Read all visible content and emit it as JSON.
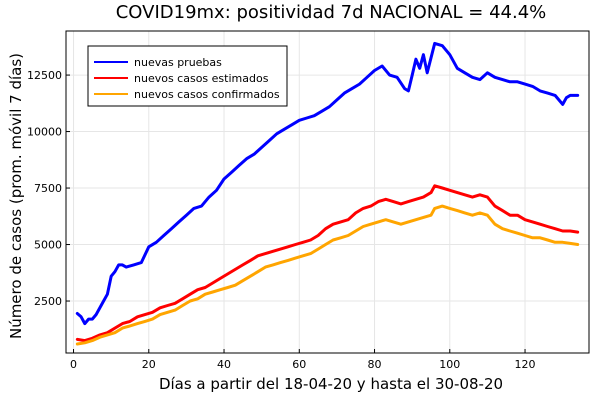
{
  "chart_data": {
    "type": "line",
    "title": "COVID19mx: positividad 7d NACIONAL = 44.4%",
    "xlabel": "Días a partir del 18-04-20 y hasta el 30-08-20",
    "ylabel": "Número de casos (prom. móvil 7 días)",
    "xlim": [
      -2,
      137
    ],
    "ylim": [
      200,
      14450
    ],
    "xticks": [
      0,
      20,
      40,
      60,
      80,
      100,
      120
    ],
    "yticks": [
      2500,
      5000,
      7500,
      10000,
      12500
    ],
    "ytick_labels": [
      "2500",
      "5000",
      "7500",
      "10000",
      "12500"
    ],
    "grid": true,
    "legend_position": "top-left",
    "series": [
      {
        "name": "nuevas pruebas",
        "color": "#0000ff",
        "x": [
          1,
          2,
          3,
          4,
          5,
          6,
          8,
          9,
          10,
          11,
          12,
          13,
          14,
          16,
          18,
          20,
          22,
          24,
          26,
          28,
          30,
          32,
          34,
          36,
          38,
          40,
          42,
          44,
          46,
          48,
          50,
          52,
          54,
          56,
          58,
          60,
          62,
          64,
          66,
          68,
          70,
          72,
          74,
          76,
          78,
          80,
          82,
          84,
          86,
          88,
          89,
          90,
          91,
          92,
          93,
          94,
          96,
          98,
          100,
          102,
          104,
          106,
          108,
          110,
          112,
          114,
          116,
          118,
          120,
          122,
          124,
          126,
          128,
          130,
          131,
          132,
          134
        ],
        "y": [
          1950,
          1800,
          1500,
          1700,
          1700,
          1900,
          2500,
          2800,
          3600,
          3800,
          4100,
          4100,
          4000,
          4100,
          4200,
          4900,
          5100,
          5400,
          5700,
          6000,
          6300,
          6600,
          6700,
          7100,
          7400,
          7900,
          8200,
          8500,
          8800,
          9000,
          9300,
          9600,
          9900,
          10100,
          10300,
          10500,
          10600,
          10700,
          10900,
          11100,
          11400,
          11700,
          11900,
          12100,
          12400,
          12700,
          12900,
          12500,
          12400,
          11900,
          11800,
          12500,
          13200,
          12800,
          13400,
          12600,
          13900,
          13800,
          13400,
          12800,
          12600,
          12400,
          12300,
          12600,
          12400,
          12300,
          12200,
          12200,
          12100,
          12000,
          11800,
          11700,
          11600,
          11200,
          11500,
          11600,
          11600
        ]
      },
      {
        "name": "nuevos casos estimados",
        "color": "#ff0000",
        "x": [
          1,
          3,
          5,
          7,
          9,
          11,
          13,
          15,
          17,
          19,
          21,
          23,
          25,
          27,
          29,
          31,
          33,
          35,
          37,
          39,
          41,
          43,
          45,
          47,
          49,
          51,
          53,
          55,
          57,
          59,
          61,
          63,
          65,
          67,
          69,
          71,
          73,
          75,
          77,
          79,
          81,
          83,
          85,
          87,
          89,
          91,
          93,
          95,
          96,
          98,
          100,
          102,
          104,
          106,
          108,
          110,
          112,
          114,
          116,
          118,
          120,
          122,
          124,
          126,
          128,
          130,
          132,
          134
        ],
        "y": [
          800,
          750,
          850,
          1000,
          1100,
          1300,
          1500,
          1600,
          1800,
          1900,
          2000,
          2200,
          2300,
          2400,
          2600,
          2800,
          3000,
          3100,
          3300,
          3500,
          3700,
          3900,
          4100,
          4300,
          4500,
          4600,
          4700,
          4800,
          4900,
          5000,
          5100,
          5200,
          5400,
          5700,
          5900,
          6000,
          6100,
          6400,
          6600,
          6700,
          6900,
          7000,
          6900,
          6800,
          6900,
          7000,
          7100,
          7300,
          7600,
          7500,
          7400,
          7300,
          7200,
          7100,
          7200,
          7100,
          6700,
          6500,
          6300,
          6300,
          6100,
          6000,
          5900,
          5800,
          5700,
          5600,
          5600,
          5550
        ]
      },
      {
        "name": "nuevos casos confirmados",
        "color": "#ffa500",
        "x": [
          1,
          3,
          5,
          7,
          9,
          11,
          13,
          15,
          17,
          19,
          21,
          23,
          25,
          27,
          29,
          31,
          33,
          35,
          37,
          39,
          41,
          43,
          45,
          47,
          49,
          51,
          53,
          55,
          57,
          59,
          61,
          63,
          65,
          67,
          69,
          71,
          73,
          75,
          77,
          79,
          81,
          83,
          85,
          87,
          89,
          91,
          93,
          95,
          96,
          98,
          100,
          102,
          104,
          106,
          108,
          110,
          112,
          114,
          116,
          118,
          120,
          122,
          124,
          126,
          128,
          130,
          132,
          134
        ],
        "y": [
          600,
          650,
          750,
          900,
          1000,
          1100,
          1300,
          1400,
          1500,
          1600,
          1700,
          1900,
          2000,
          2100,
          2300,
          2500,
          2600,
          2800,
          2900,
          3000,
          3100,
          3200,
          3400,
          3600,
          3800,
          4000,
          4100,
          4200,
          4300,
          4400,
          4500,
          4600,
          4800,
          5000,
          5200,
          5300,
          5400,
          5600,
          5800,
          5900,
          6000,
          6100,
          6000,
          5900,
          6000,
          6100,
          6200,
          6300,
          6600,
          6700,
          6600,
          6500,
          6400,
          6300,
          6400,
          6300,
          5900,
          5700,
          5600,
          5500,
          5400,
          5300,
          5300,
          5200,
          5100,
          5100,
          5050,
          5000
        ]
      }
    ]
  }
}
